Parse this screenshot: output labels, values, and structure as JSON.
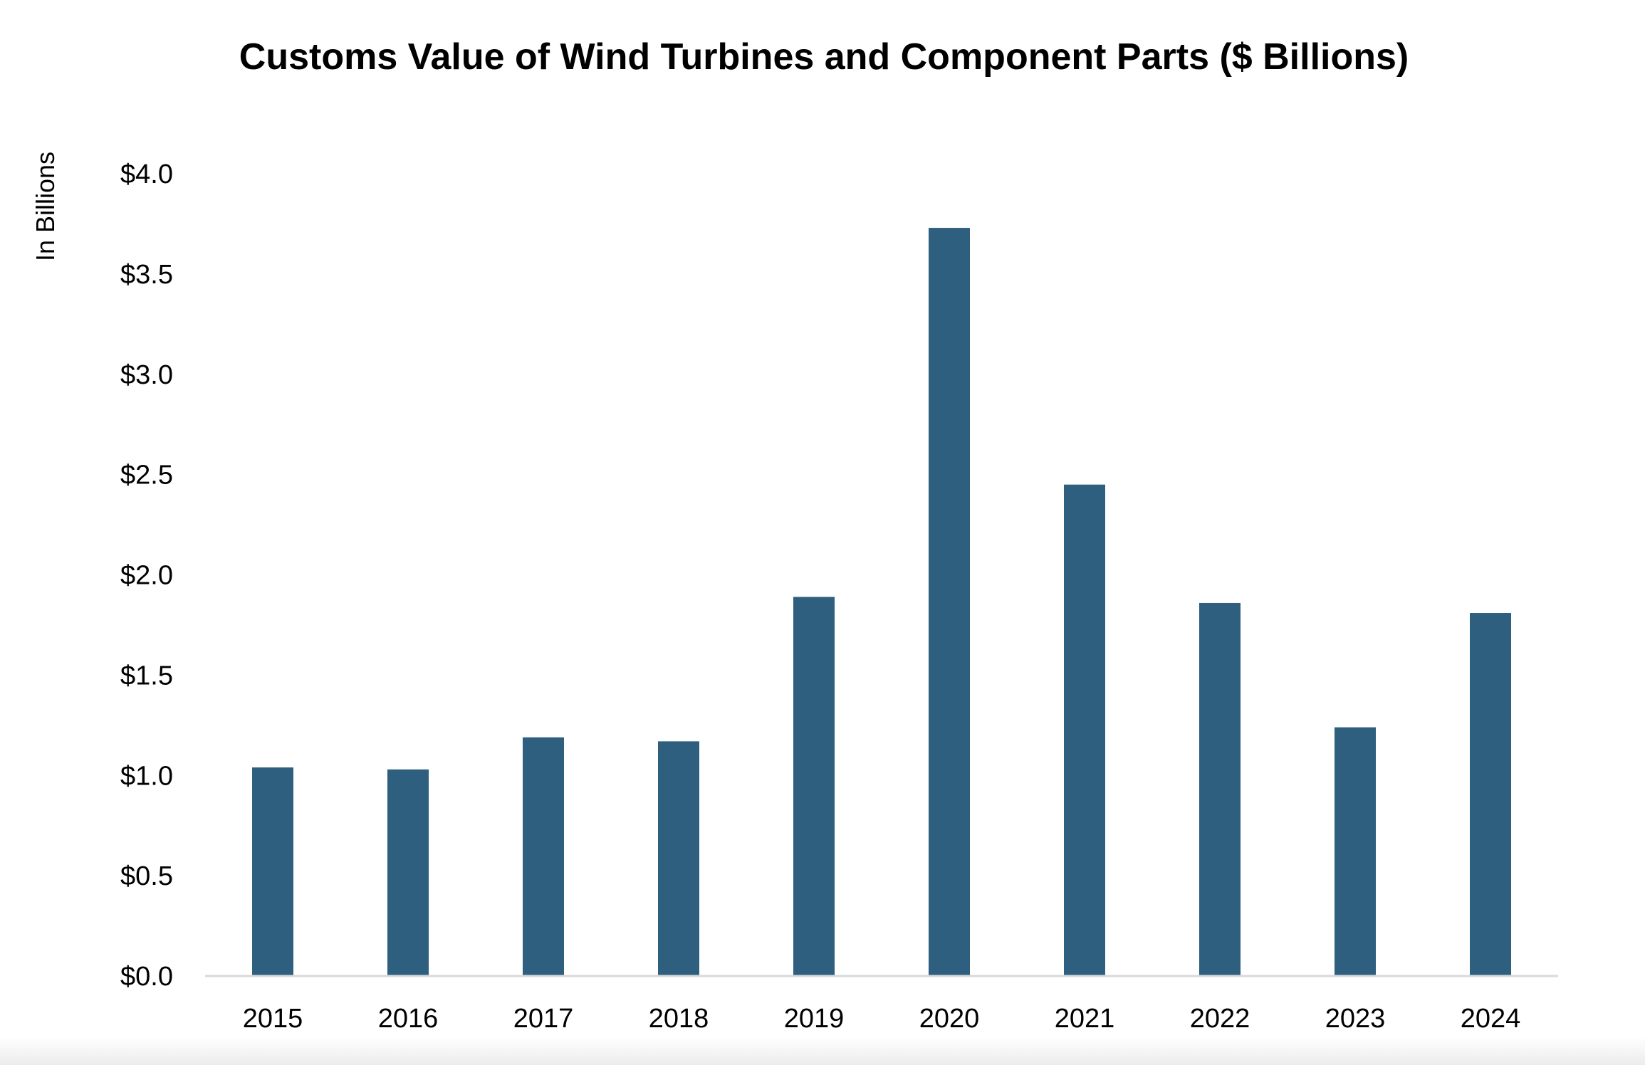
{
  "chart_data": {
    "type": "bar",
    "title": "Customs Value of Wind Turbines and Component Parts ($ Billions)",
    "xlabel": "",
    "ylabel": "In Billions",
    "categories": [
      "2015",
      "2016",
      "2017",
      "2018",
      "2019",
      "2020",
      "2021",
      "2022",
      "2023",
      "2024"
    ],
    "values": [
      1.04,
      1.03,
      1.19,
      1.17,
      1.89,
      3.73,
      2.45,
      1.86,
      1.24,
      1.81
    ],
    "ylim": [
      0,
      4
    ],
    "yticks": [
      0,
      0.5,
      1.0,
      1.5,
      2.0,
      2.5,
      3.0,
      3.5,
      4.0
    ],
    "ytick_labels": [
      "$0.0",
      "$0.5",
      "$1.0",
      "$1.5",
      "$2.0",
      "$2.5",
      "$3.0",
      "$3.5",
      "$4.0"
    ],
    "grid": false,
    "legend": "none",
    "bar_color": "#2e5f7f",
    "axis_color": "#d9d9d9"
  }
}
